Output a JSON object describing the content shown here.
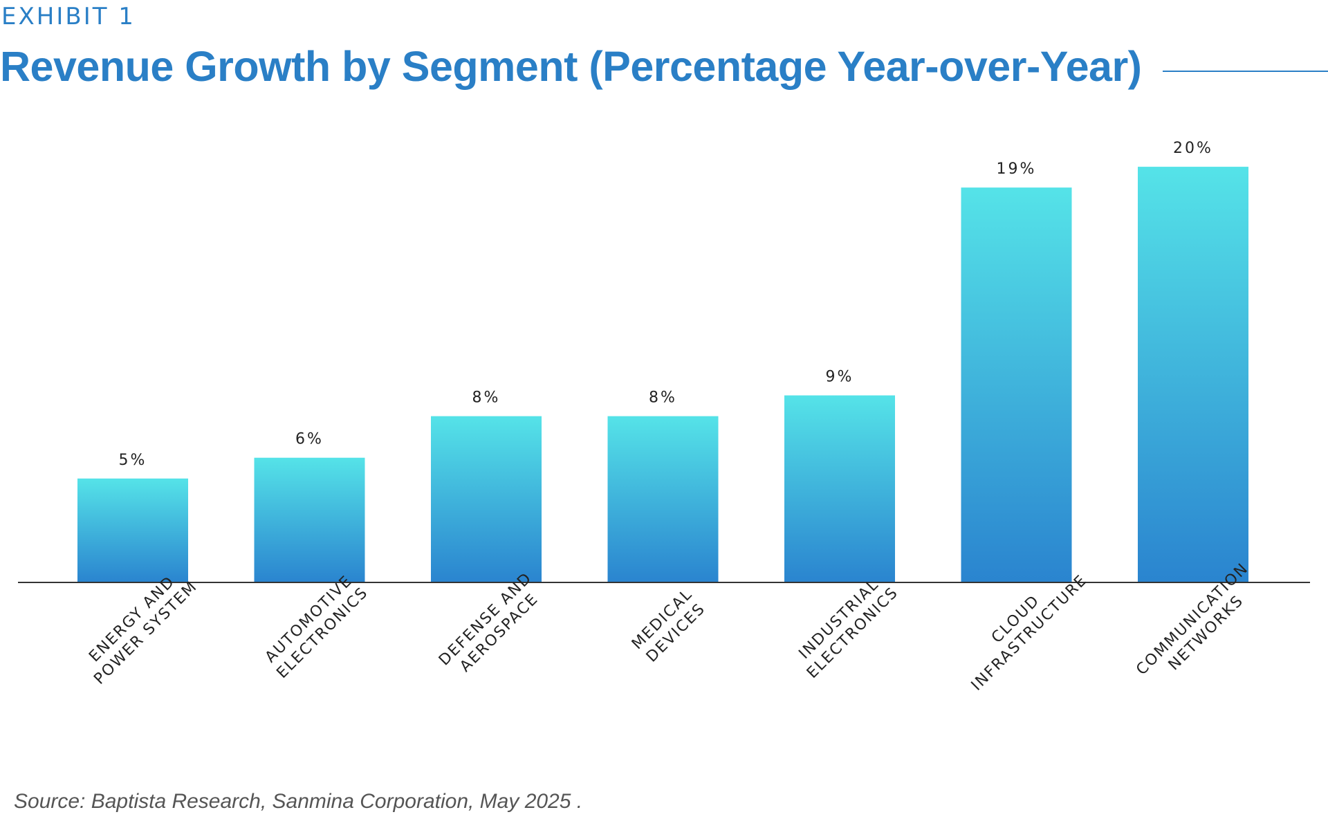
{
  "exhibit_label": "EXHIBIT 1",
  "source_text": "Source: Baptista Research, Sanmina Corporation, May 2025 .",
  "colors": {
    "title": "#2a7fc6",
    "bar_top": "#55e3e8",
    "bar_bottom": "#2a84cf",
    "axis": "#333333",
    "text": "#222222"
  },
  "chart_data": {
    "type": "bar",
    "title": "Revenue Growth by Segment (Percentage Year-over-Year)",
    "xlabel": "",
    "ylabel": "",
    "ylim": [
      0,
      21.7
    ],
    "grid": false,
    "categories": [
      [
        "ENERGY AND",
        "POWER SYSTEM"
      ],
      [
        "AUTOMOTIVE",
        "ELECTRONICS"
      ],
      [
        "DEFENSE AND",
        "AEROSPACE"
      ],
      [
        "MEDICAL",
        "DEVICES"
      ],
      [
        "INDUSTRIAL",
        "ELECTRONICS"
      ],
      [
        "CLOUD",
        "INFRASTRUCTURE"
      ],
      [
        "COMMUNICATION",
        "NETWORKS"
      ]
    ],
    "values": [
      5,
      6,
      8,
      8,
      9,
      19,
      20
    ],
    "value_labels": [
      "5%",
      "6%",
      "8%",
      "8%",
      "9%",
      "19%",
      "20%"
    ]
  }
}
